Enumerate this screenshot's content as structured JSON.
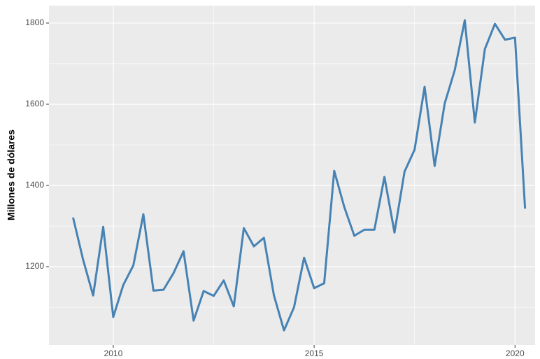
{
  "chart_data": {
    "type": "line",
    "y_label": "Millones de dólares",
    "x": [
      2009.0,
      2009.25,
      2009.5,
      2009.75,
      2010.0,
      2010.25,
      2010.5,
      2010.75,
      2011.0,
      2011.25,
      2011.5,
      2011.75,
      2012.0,
      2012.25,
      2012.5,
      2012.75,
      2013.0,
      2013.25,
      2013.5,
      2013.75,
      2014.0,
      2014.25,
      2014.5,
      2014.75,
      2015.0,
      2015.25,
      2015.5,
      2015.75,
      2016.0,
      2016.25,
      2016.5,
      2016.75,
      2017.0,
      2017.25,
      2017.5,
      2017.75,
      2018.0,
      2018.25,
      2018.5,
      2018.75,
      2019.0,
      2019.25,
      2019.5,
      2019.75,
      2020.0,
      2020.25
    ],
    "values": [
      1321,
      1217,
      1129,
      1298,
      1076,
      1155,
      1203,
      1329,
      1141,
      1143,
      1184,
      1238,
      1067,
      1140,
      1128,
      1166,
      1102,
      1295,
      1250,
      1271,
      1129,
      1043,
      1100,
      1222,
      1147,
      1159,
      1436,
      1347,
      1276,
      1291,
      1291,
      1421,
      1284,
      1434,
      1488,
      1643,
      1448,
      1602,
      1684,
      1807,
      1555,
      1736,
      1798,
      1759,
      1764,
      1343
    ],
    "color": "#4682b4",
    "xlim": [
      2008.4,
      2020.5
    ],
    "xticks": [
      2010,
      2015,
      2020
    ],
    "ylim": [
      1007,
      1843
    ],
    "yticks": [
      1200,
      1400,
      1600,
      1800
    ],
    "grid": true
  }
}
